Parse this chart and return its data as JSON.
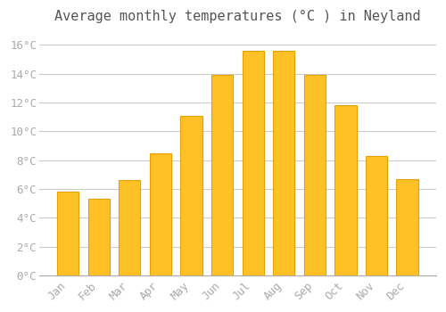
{
  "title": "Average monthly temperatures (°C ) in Neyland",
  "months": [
    "Jan",
    "Feb",
    "Mar",
    "Apr",
    "May",
    "Jun",
    "Jul",
    "Aug",
    "Sep",
    "Oct",
    "Nov",
    "Dec"
  ],
  "temperatures": [
    5.8,
    5.3,
    6.6,
    8.5,
    11.1,
    13.9,
    15.6,
    15.6,
    13.9,
    11.8,
    8.3,
    6.7
  ],
  "bar_color": "#FFC125",
  "bar_edge_color": "#E8A000",
  "background_color": "#FFFFFF",
  "grid_color": "#CCCCCC",
  "text_color": "#AAAAAA",
  "ylim": [
    0,
    17
  ],
  "ytick_interval": 2,
  "title_fontsize": 11,
  "tick_fontsize": 9
}
